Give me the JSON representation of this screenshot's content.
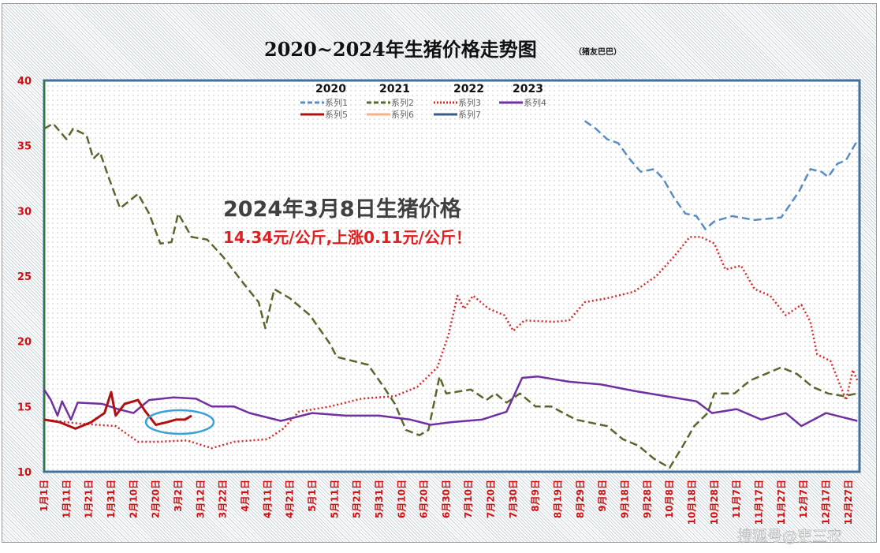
{
  "chart_data": {
    "type": "line",
    "title": "2020~2024年生猪价格走势图",
    "subtitle": "（猪友巴巴）",
    "xlabel": "",
    "ylabel": "",
    "ylim": [
      10,
      40
    ],
    "yticks": [
      10,
      15,
      20,
      25,
      30,
      35,
      40
    ],
    "xticks": [
      "1月1日",
      "1月11日",
      "1月21日",
      "1月31日",
      "2月10日",
      "2月20日",
      "3月2日",
      "3月12日",
      "3月22日",
      "4月1日",
      "4月11日",
      "4月21日",
      "5月1日",
      "5月11日",
      "5月21日",
      "5月31日",
      "6月10日",
      "6月20日",
      "6月30日",
      "7月10日",
      "7月20日",
      "7月30日",
      "8月9日",
      "8月19日",
      "8月29日",
      "9月8日",
      "9月18日",
      "9月28日",
      "10月8日",
      "10月18日",
      "10月28日",
      "11月7日",
      "11月17日",
      "11月27日",
      "12月7日",
      "12月17日",
      "12月27日"
    ],
    "grid": false,
    "legend_position": "top-center",
    "legend_year_headers": [
      "2020",
      "2021",
      "2022",
      "2023"
    ],
    "series": [
      {
        "name": "系列1",
        "color": "#5b8cc0",
        "style": "dashed",
        "points": [
          [
            "8-31",
            36.9
          ],
          [
            "9-5",
            36.3
          ],
          [
            "9-10",
            35.5
          ],
          [
            "9-15",
            35.2
          ],
          [
            "9-20",
            34
          ],
          [
            "9-25",
            33
          ],
          [
            "10-1",
            33.2
          ],
          [
            "10-5",
            32.5
          ],
          [
            "10-10",
            31
          ],
          [
            "10-15",
            29.8
          ],
          [
            "10-20",
            29.6
          ],
          [
            "10-24",
            28.6
          ],
          [
            "10-28",
            29.2
          ],
          [
            "11-5",
            29.6
          ],
          [
            "11-15",
            29.3
          ],
          [
            "11-27",
            29.5
          ],
          [
            "12-5",
            31.5
          ],
          [
            "12-10",
            33.2
          ],
          [
            "12-15",
            33
          ],
          [
            "12-18",
            32.6
          ],
          [
            "12-22",
            33.6
          ],
          [
            "12-26",
            33.9
          ],
          [
            "12-28",
            34.5
          ],
          [
            "12-31",
            35.4
          ]
        ]
      },
      {
        "name": "系列2",
        "color": "#56682c",
        "style": "dashed",
        "points": [
          [
            "1-1",
            36.3
          ],
          [
            "1-5",
            36.7
          ],
          [
            "1-11",
            35.5
          ],
          [
            "1-14",
            36.3
          ],
          [
            "1-20",
            35.8
          ],
          [
            "1-23",
            34
          ],
          [
            "1-26",
            34.5
          ],
          [
            "1-30",
            32.5
          ],
          [
            "2-4",
            30.2
          ],
          [
            "2-12",
            31.3
          ],
          [
            "2-17",
            29.8
          ],
          [
            "2-22",
            27.5
          ],
          [
            "2-27",
            27.6
          ],
          [
            "3-2",
            29.8
          ],
          [
            "3-8",
            28
          ],
          [
            "3-15",
            27.8
          ],
          [
            "3-22",
            26.5
          ],
          [
            "3-31",
            24.5
          ],
          [
            "4-7",
            23
          ],
          [
            "4-10",
            21
          ],
          [
            "4-14",
            24
          ],
          [
            "4-21",
            23.3
          ],
          [
            "4-30",
            22
          ],
          [
            "5-9",
            19.8
          ],
          [
            "5-12",
            18.8
          ],
          [
            "5-26",
            18.2
          ],
          [
            "6-2",
            16.5
          ],
          [
            "6-7",
            15.2
          ],
          [
            "6-12",
            13.2
          ],
          [
            "6-18",
            12.8
          ],
          [
            "6-22",
            13.2
          ],
          [
            "6-27",
            17.3
          ],
          [
            "6-30",
            16
          ],
          [
            "7-11",
            16.3
          ],
          [
            "7-18",
            15.5
          ],
          [
            "7-22",
            16
          ],
          [
            "7-27",
            15.3
          ],
          [
            "8-2",
            16
          ],
          [
            "8-9",
            15
          ],
          [
            "8-16",
            15
          ],
          [
            "8-27",
            14
          ],
          [
            "9-10",
            13.5
          ],
          [
            "9-17",
            12.5
          ],
          [
            "9-24",
            12
          ],
          [
            "10-1",
            11
          ],
          [
            "10-8",
            10.3
          ],
          [
            "10-14",
            12
          ],
          [
            "10-19",
            13.5
          ],
          [
            "10-25",
            14.5
          ],
          [
            "10-28",
            16
          ],
          [
            "11-6",
            16
          ],
          [
            "11-13",
            17
          ],
          [
            "11-20",
            17.5
          ],
          [
            "11-27",
            18
          ],
          [
            "12-4",
            17.5
          ],
          [
            "12-11",
            16.5
          ],
          [
            "12-18",
            16
          ],
          [
            "12-25",
            15.8
          ],
          [
            "12-31",
            16
          ]
        ]
      },
      {
        "name": "系列3",
        "color": "#d42a2a",
        "style": "dotted",
        "points": [
          [
            "1-1",
            14
          ],
          [
            "1-16",
            13.7
          ],
          [
            "2-2",
            13.5
          ],
          [
            "2-12",
            12.3
          ],
          [
            "2-21",
            12.3
          ],
          [
            "3-6",
            12.4
          ],
          [
            "3-17",
            11.8
          ],
          [
            "3-27",
            12.3
          ],
          [
            "4-11",
            12.5
          ],
          [
            "4-18",
            13.3
          ],
          [
            "4-25",
            14.6
          ],
          [
            "5-9",
            15
          ],
          [
            "5-23",
            15.6
          ],
          [
            "6-7",
            15.8
          ],
          [
            "6-17",
            16.5
          ],
          [
            "6-26",
            18
          ],
          [
            "7-1",
            20.5
          ],
          [
            "7-5",
            23.5
          ],
          [
            "7-8",
            22.5
          ],
          [
            "7-12",
            23.5
          ],
          [
            "7-19",
            22.5
          ],
          [
            "7-26",
            22
          ],
          [
            "7-30",
            20.8
          ],
          [
            "8-4",
            21.6
          ],
          [
            "8-17",
            21.5
          ],
          [
            "8-24",
            21.6
          ],
          [
            "8-31",
            23
          ],
          [
            "9-10",
            23.3
          ],
          [
            "9-22",
            23.8
          ],
          [
            "10-2",
            25
          ],
          [
            "10-10",
            26.5
          ],
          [
            "10-17",
            28
          ],
          [
            "10-22",
            28
          ],
          [
            "10-28",
            27.5
          ],
          [
            "11-2",
            25.5
          ],
          [
            "11-9",
            25.8
          ],
          [
            "11-15",
            24
          ],
          [
            "11-22",
            23.5
          ],
          [
            "11-29",
            22
          ],
          [
            "12-6",
            22.8
          ],
          [
            "12-10",
            21.5
          ],
          [
            "12-13",
            19
          ],
          [
            "12-19",
            18.5
          ],
          [
            "12-26",
            15.5
          ],
          [
            "12-29",
            17.8
          ],
          [
            "12-31",
            17
          ]
        ]
      },
      {
        "name": "系列4",
        "color": "#7030a0",
        "style": "solid",
        "points": [
          [
            "1-1",
            16.3
          ],
          [
            "1-4",
            15.5
          ],
          [
            "1-7",
            14.3
          ],
          [
            "1-9",
            15.4
          ],
          [
            "1-13",
            14
          ],
          [
            "1-16",
            15.3
          ],
          [
            "1-27",
            15.2
          ],
          [
            "2-3",
            14.8
          ],
          [
            "2-10",
            14.5
          ],
          [
            "2-17",
            15.5
          ],
          [
            "2-28",
            15.7
          ],
          [
            "3-10",
            15.6
          ],
          [
            "3-17",
            15
          ],
          [
            "3-27",
            15
          ],
          [
            "4-3",
            14.5
          ],
          [
            "4-17",
            13.9
          ],
          [
            "5-1",
            14.5
          ],
          [
            "5-16",
            14.3
          ],
          [
            "5-31",
            14.3
          ],
          [
            "6-14",
            14
          ],
          [
            "6-23",
            13.6
          ],
          [
            "7-2",
            13.8
          ],
          [
            "7-16",
            14
          ],
          [
            "7-27",
            14.6
          ],
          [
            "8-3",
            17.2
          ],
          [
            "8-10",
            17.3
          ],
          [
            "8-24",
            16.9
          ],
          [
            "9-7",
            16.7
          ],
          [
            "9-22",
            16.2
          ],
          [
            "10-6",
            15.8
          ],
          [
            "10-20",
            15.4
          ],
          [
            "10-27",
            14.5
          ],
          [
            "11-7",
            14.8
          ],
          [
            "11-18",
            14
          ],
          [
            "11-29",
            14.5
          ],
          [
            "12-6",
            13.5
          ],
          [
            "12-17",
            14.5
          ],
          [
            "12-24",
            14.2
          ],
          [
            "12-31",
            13.9
          ]
        ]
      },
      {
        "name": "系列5",
        "color": "#b01010",
        "style": "solid",
        "points": [
          [
            "1-1",
            14
          ],
          [
            "1-8",
            13.8
          ],
          [
            "1-15",
            13.3
          ],
          [
            "1-22",
            13.8
          ],
          [
            "1-28",
            14.5
          ],
          [
            "1-31",
            16.1
          ],
          [
            "2-2",
            14.3
          ],
          [
            "2-6",
            15.2
          ],
          [
            "2-12",
            15.5
          ],
          [
            "2-15",
            14.7
          ],
          [
            "2-20",
            13.6
          ],
          [
            "2-25",
            13.8
          ],
          [
            "3-1",
            14
          ],
          [
            "3-5",
            14
          ],
          [
            "3-8",
            14.3
          ]
        ]
      },
      {
        "name": "系列6",
        "color": "#f4b183",
        "style": "solid",
        "points": []
      },
      {
        "name": "系列7",
        "color": "#3a5a8a",
        "style": "solid",
        "points": []
      }
    ],
    "annotations": {
      "headline": "2024年3月8日生猪价格",
      "detail": "14.34元/公斤,上涨0.11元/公斤！",
      "highlight_ellipse_color": "#3aa0d8"
    }
  },
  "watermark": "搜狐号@吏三农"
}
